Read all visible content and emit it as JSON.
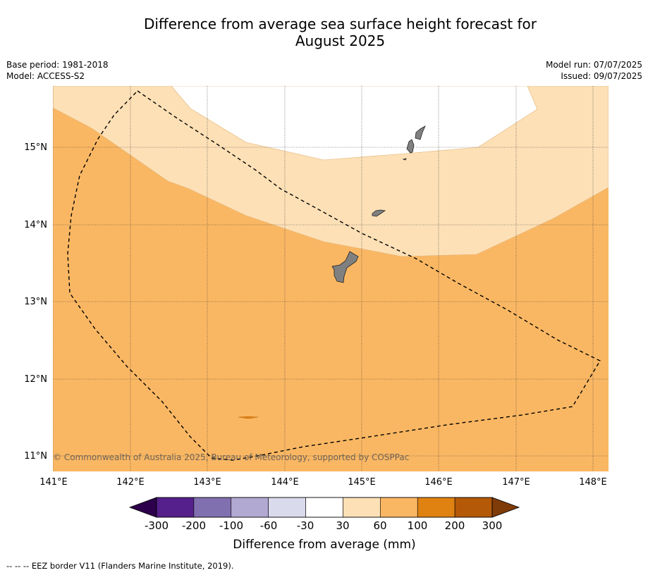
{
  "title_line1": "Difference from average sea surface height forecast for",
  "title_line2": "August 2025",
  "info": {
    "base_period": "Base period: 1981-2018",
    "model": "Model: ACCESS-S2",
    "model_run": "Model run: 07/07/2025",
    "issued": "Issued: 09/07/2025"
  },
  "map": {
    "lon_ticks": [
      "141°E",
      "142°E",
      "143°E",
      "144°E",
      "145°E",
      "146°E",
      "147°E",
      "148°E"
    ],
    "lat_ticks": [
      "15°N",
      "14°N",
      "13°N",
      "12°N",
      "11°N"
    ],
    "copyright": "© Commonwealth of Australia 2025, Bureau of Meteorology, supported by COSPPac",
    "land_color": "#808080",
    "eez_style": "dashed"
  },
  "colorbar": {
    "title": "Difference from average (mm)",
    "tick_labels": [
      "-300",
      "-200",
      "-100",
      "-60",
      "-30",
      "30",
      "60",
      "100",
      "200",
      "300"
    ],
    "colors": [
      "#55208b",
      "#8170b0",
      "#b2a9d3",
      "#dadaed",
      "#ffffff",
      "#fde0b6",
      "#fab763",
      "#e08211",
      "#b35907"
    ],
    "under_color": "#2d004b",
    "over_color": "#7f3b08"
  },
  "legend_note": "--  --  -- EEZ border V11 (Flanders Marine Institute, 2019)."
}
